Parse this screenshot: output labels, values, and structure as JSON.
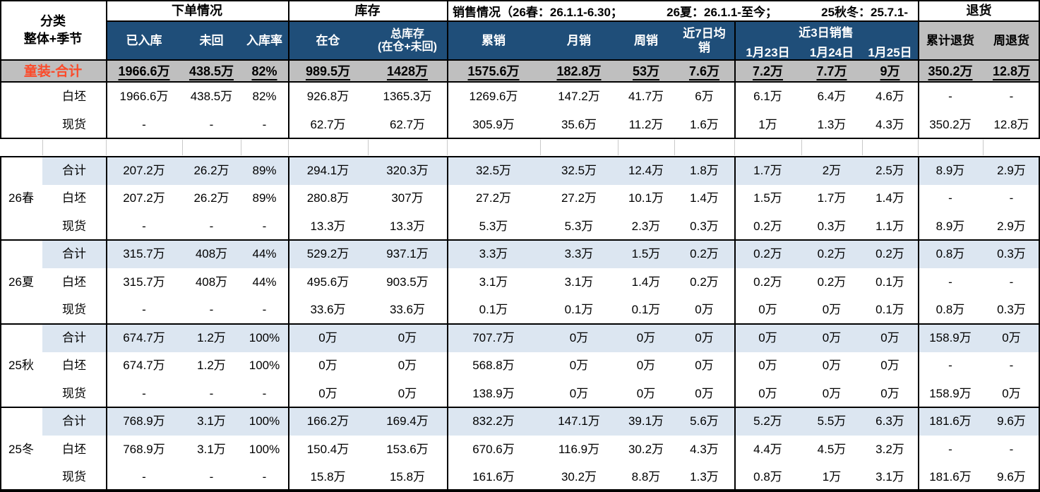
{
  "colors": {
    "header_blue": "#1F4E79",
    "highlight_row_blue": "#DCE6F1",
    "total_row_gray": "#BFBFBF",
    "total_label_red": "#FB4B2B"
  },
  "header": {
    "category_line1": "分类",
    "category_line2": "整体+季节",
    "order_section": "下单情况",
    "inventory_section": "库存",
    "sales_section_part1": "销售情况（26春：26.1.1-6.30；",
    "sales_section_part2": "26夏：26.1.1-至今；",
    "sales_section_part3": "25秋冬：25.7.1-",
    "returns_section": "退货",
    "col_received": "已入库",
    "col_not_returned": "未回",
    "col_receipt_rate": "入库率",
    "col_in_warehouse": "在仓",
    "col_total_inventory": "总库存\n(在仓+未回)",
    "col_cumulative_sales": "累销",
    "col_monthly_sales": "月销",
    "col_weekly_sales": "周销",
    "col_7day_avg_sales": "近7日均\n销",
    "recent3_title": "近3日销售",
    "recent3_dates": [
      "1月23日",
      "1月24日",
      "1月25日"
    ],
    "col_cumulative_returns": "累计退货",
    "col_weekly_returns": "周退货"
  },
  "table": {
    "total_row": {
      "label": "童装-合计",
      "values": [
        "1966.6万",
        "438.5万",
        "82%",
        "989.5万",
        "1428万",
        "1575.6万",
        "182.8万",
        "53万",
        "7.6万",
        "7.2万",
        "7.7万",
        "9万",
        "350.2万",
        "12.8万"
      ]
    },
    "overall_rows": [
      {
        "label": "白坯",
        "values": [
          "1966.6万",
          "438.5万",
          "82%",
          "926.8万",
          "1365.3万",
          "1269.6万",
          "147.2万",
          "41.7万",
          "6万",
          "6.1万",
          "6.4万",
          "4.6万",
          "-",
          "-"
        ]
      },
      {
        "label": "现货",
        "values": [
          "-",
          "-",
          "-",
          "62.7万",
          "62.7万",
          "305.9万",
          "35.6万",
          "11.2万",
          "1.6万",
          "1万",
          "1.3万",
          "4.3万",
          "350.2万",
          "12.8万"
        ]
      }
    ],
    "season_groups": [
      {
        "name": "26春",
        "rows": [
          {
            "label": "合计",
            "highlight": true,
            "values": [
              "207.2万",
              "26.2万",
              "89%",
              "294.1万",
              "320.3万",
              "32.5万",
              "32.5万",
              "12.4万",
              "1.8万",
              "1.7万",
              "2万",
              "2.5万",
              "8.9万",
              "2.9万"
            ]
          },
          {
            "label": "白坯",
            "highlight": false,
            "values": [
              "207.2万",
              "26.2万",
              "89%",
              "280.8万",
              "307万",
              "27.2万",
              "27.2万",
              "10.1万",
              "1.4万",
              "1.5万",
              "1.7万",
              "1.4万",
              "-",
              "-"
            ]
          },
          {
            "label": "现货",
            "highlight": false,
            "values": [
              "-",
              "-",
              "-",
              "13.3万",
              "13.3万",
              "5.3万",
              "5.3万",
              "2.3万",
              "0.3万",
              "0.2万",
              "0.3万",
              "1.1万",
              "8.9万",
              "2.9万"
            ]
          }
        ]
      },
      {
        "name": "26夏",
        "rows": [
          {
            "label": "合计",
            "highlight": true,
            "values": [
              "315.7万",
              "408万",
              "44%",
              "529.2万",
              "937.1万",
              "3.3万",
              "3.3万",
              "1.5万",
              "0.2万",
              "0.2万",
              "0.2万",
              "0.2万",
              "0.8万",
              "0.3万"
            ]
          },
          {
            "label": "白坯",
            "highlight": false,
            "values": [
              "315.7万",
              "408万",
              "44%",
              "495.6万",
              "903.5万",
              "3.1万",
              "3.1万",
              "1.4万",
              "0.2万",
              "0.2万",
              "0.2万",
              "0.1万",
              "-",
              "-"
            ]
          },
          {
            "label": "现货",
            "highlight": false,
            "values": [
              "-",
              "-",
              "-",
              "33.6万",
              "33.6万",
              "0.1万",
              "0.1万",
              "0.1万",
              "0万",
              "0万",
              "0万",
              "0.1万",
              "0.8万",
              "0.3万"
            ]
          }
        ]
      },
      {
        "name": "25秋",
        "rows": [
          {
            "label": "合计",
            "highlight": true,
            "values": [
              "674.7万",
              "1.2万",
              "100%",
              "0万",
              "0万",
              "707.7万",
              "0万",
              "0万",
              "0万",
              "0万",
              "0万",
              "0万",
              "158.9万",
              "0万"
            ]
          },
          {
            "label": "白坯",
            "highlight": false,
            "values": [
              "674.7万",
              "1.2万",
              "100%",
              "0万",
              "0万",
              "568.8万",
              "0万",
              "0万",
              "0万",
              "0万",
              "0万",
              "0万",
              "-",
              "-"
            ]
          },
          {
            "label": "现货",
            "highlight": false,
            "values": [
              "-",
              "-",
              "-",
              "0万",
              "0万",
              "138.9万",
              "0万",
              "0万",
              "0万",
              "0万",
              "0万",
              "0万",
              "158.9万",
              "0万"
            ]
          }
        ]
      },
      {
        "name": "25冬",
        "rows": [
          {
            "label": "合计",
            "highlight": true,
            "values": [
              "768.9万",
              "3.1万",
              "100%",
              "166.2万",
              "169.4万",
              "832.2万",
              "147.1万",
              "39.1万",
              "5.6万",
              "5.2万",
              "5.5万",
              "6.3万",
              "181.6万",
              "9.6万"
            ]
          },
          {
            "label": "白坯",
            "highlight": false,
            "values": [
              "768.9万",
              "3.1万",
              "100%",
              "150.4万",
              "153.6万",
              "670.6万",
              "116.9万",
              "30.2万",
              "4.3万",
              "4.4万",
              "4.5万",
              "3.2万",
              "-",
              "-"
            ]
          },
          {
            "label": "现货",
            "highlight": false,
            "values": [
              "-",
              "-",
              "-",
              "15.8万",
              "15.8万",
              "161.6万",
              "30.2万",
              "8.8万",
              "1.3万",
              "0.8万",
              "1万",
              "3.1万",
              "181.6万",
              "9.6万"
            ]
          }
        ]
      }
    ]
  }
}
